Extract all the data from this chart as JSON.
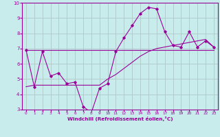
{
  "xlabel": "Windchill (Refroidissement éolien,°C)",
  "xlim": [
    -0.5,
    23.5
  ],
  "ylim": [
    3,
    10
  ],
  "yticks": [
    3,
    4,
    5,
    6,
    7,
    8,
    9,
    10
  ],
  "xticks": [
    0,
    1,
    2,
    3,
    4,
    5,
    6,
    7,
    8,
    9,
    10,
    11,
    12,
    13,
    14,
    15,
    16,
    17,
    18,
    19,
    20,
    21,
    22,
    23
  ],
  "bg_color": "#c8ecec",
  "grid_color": "#b0c8c8",
  "line_color": "#990099",
  "line1_x": [
    0,
    1,
    2,
    3,
    4,
    5,
    6,
    7,
    8,
    9,
    10,
    11,
    12,
    13,
    14,
    15,
    16,
    17,
    18,
    19,
    20,
    21,
    22,
    23
  ],
  "line1_y": [
    6.9,
    6.9,
    6.9,
    6.9,
    6.9,
    6.9,
    6.9,
    6.9,
    6.9,
    6.9,
    6.9,
    6.9,
    6.9,
    6.9,
    6.9,
    6.9,
    6.9,
    6.9,
    6.9,
    6.9,
    6.9,
    6.9,
    6.9,
    6.9
  ],
  "line2_x": [
    0,
    1,
    2,
    3,
    4,
    5,
    6,
    7,
    8,
    9,
    10,
    11,
    12,
    13,
    14,
    15,
    16,
    17,
    18,
    19,
    20,
    21,
    22,
    23
  ],
  "line2_y": [
    4.5,
    4.6,
    4.6,
    4.6,
    4.6,
    4.6,
    4.6,
    4.6,
    4.6,
    4.6,
    5.0,
    5.3,
    5.7,
    6.1,
    6.5,
    6.8,
    7.0,
    7.1,
    7.2,
    7.3,
    7.4,
    7.5,
    7.6,
    7.1
  ],
  "line3_x": [
    0,
    1,
    2,
    3,
    4,
    5,
    6,
    7,
    8,
    9,
    10,
    11,
    12,
    13,
    14,
    15,
    16,
    17,
    18,
    19,
    20,
    21,
    22,
    23
  ],
  "line3_y": [
    6.9,
    4.5,
    6.8,
    5.2,
    5.4,
    4.7,
    4.8,
    3.2,
    2.8,
    4.4,
    4.7,
    6.8,
    7.7,
    8.5,
    9.3,
    9.7,
    9.6,
    8.1,
    7.2,
    7.1,
    8.1,
    7.1,
    7.5,
    7.1
  ]
}
